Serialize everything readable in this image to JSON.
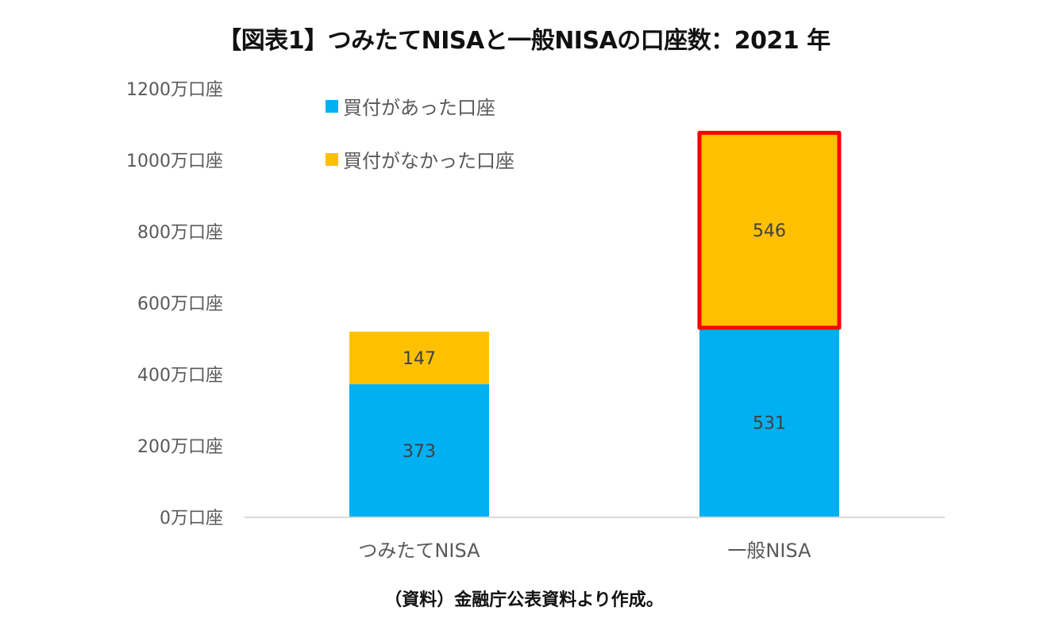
{
  "title": "【図表1】つみたてNISAと一般NISAの口座数：2021 年",
  "source": "（資料）金融庁公表資料より作成。",
  "colors": {
    "bought": "#00B0F0",
    "not_bought": "#FFC000",
    "highlight": "#FF0000",
    "axis": "#D9D9D9"
  },
  "chart_data": {
    "type": "bar",
    "stacked": true,
    "categories": [
      "つみたてNISA",
      "一般NISA"
    ],
    "series": [
      {
        "name": "買付があった口座",
        "values": [
          373,
          531
        ],
        "color": "#00B0F0"
      },
      {
        "name": "買付がなかった口座",
        "values": [
          147,
          546
        ],
        "color": "#FFC000"
      }
    ],
    "ylim": [
      0,
      1200
    ],
    "yticks": [
      0,
      200,
      400,
      600,
      800,
      1000,
      1200
    ],
    "ytick_labels": [
      "0万口座",
      "200万口座",
      "400万口座",
      "600万口座",
      "800万口座",
      "1000万口座",
      "1200万口座"
    ],
    "grid": false,
    "legend_position": "top-left",
    "highlight": {
      "category": "一般NISA",
      "series": "買付がなかった口座",
      "color": "#FF0000"
    }
  }
}
